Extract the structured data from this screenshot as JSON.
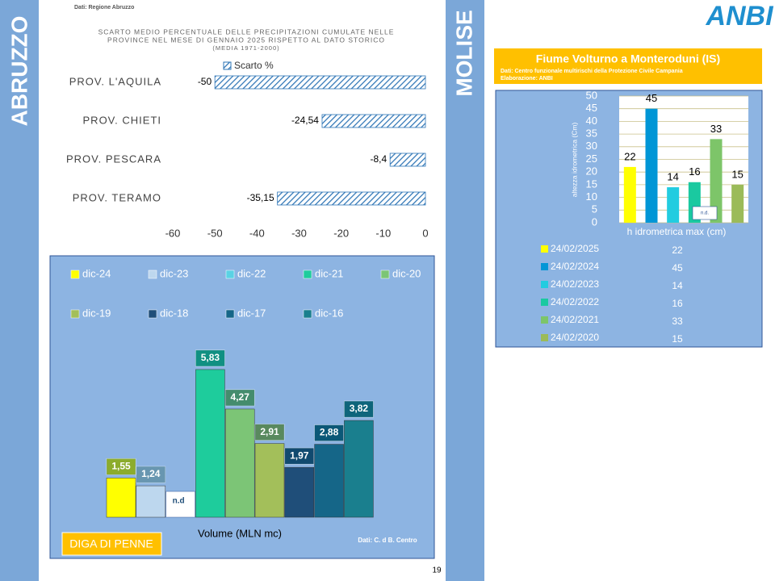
{
  "sidebar_left": "ABRUZZO",
  "sidebar_right": "MOLISE",
  "logo": "ANBI",
  "page_number": "19",
  "chart_data": [
    {
      "type": "hbar",
      "source": "Dati: Regione Abruzzo",
      "title": [
        "SCARTO MEDIO PERCENTUALE DELLE PRECIPITAZIONI CUMULATE NELLE",
        "PROVINCE NEL MESE DI GENNAIO 2025 RISPETTO AL DATO STORICO",
        "(MEDIA 1971-2000)"
      ],
      "categories": [
        "PROV. L'AQUILA",
        "PROV. CHIETI",
        "PROV. PESCARA",
        "PROV. TERAMO"
      ],
      "series": [
        {
          "name": "Scarto %",
          "color": "#2e75b6",
          "values": [
            -50,
            -24.54,
            -8.4,
            -35.15
          ],
          "value_labels": [
            "-50",
            "-24,54",
            "-8,4",
            "-35,15"
          ]
        }
      ],
      "xlim": [
        -60,
        0
      ],
      "xticks": [
        -60,
        -50,
        -40,
        -30,
        -20,
        -10,
        0
      ]
    },
    {
      "type": "bar",
      "title": "DIGA DI PENNE",
      "xlabel": "Volume (MLN mc)",
      "source": "Dati: C. d B. Centro",
      "series": [
        {
          "name": "dic-24",
          "color": "#ffff00",
          "values": [
            1.55
          ],
          "value_labels": [
            "1,55"
          ]
        },
        {
          "name": "dic-23",
          "color": "#bdd7ee",
          "values": [
            1.24
          ],
          "value_labels": [
            "1,24"
          ]
        },
        {
          "name": "dic-22",
          "color": "#5ad2e4",
          "values": [
            null
          ],
          "value_labels": [
            "n.d"
          ]
        },
        {
          "name": "dic-21",
          "color": "#1ecc9c",
          "values": [
            5.83
          ],
          "value_labels": [
            "5,83"
          ]
        },
        {
          "name": "dic-20",
          "color": "#7cc576",
          "values": [
            4.27
          ],
          "value_labels": [
            "4,27"
          ]
        },
        {
          "name": "dic-19",
          "color": "#a3bf5a",
          "values": [
            2.91
          ],
          "value_labels": [
            "2,91"
          ]
        },
        {
          "name": "dic-18",
          "color": "#1f4e79",
          "values": [
            1.97
          ],
          "value_labels": [
            "1,97"
          ]
        },
        {
          "name": "dic-17",
          "color": "#156688",
          "values": [
            2.88
          ],
          "value_labels": [
            "2,88"
          ]
        },
        {
          "name": "dic-16",
          "color": "#1a7f8e",
          "values": [
            3.82
          ],
          "value_labels": [
            "3,82"
          ]
        }
      ]
    },
    {
      "type": "bar",
      "title": "Fiume Volturno a Monteroduni (IS)",
      "subtitle": [
        "Dati: Centro funzionale multirischi della Protezione Civile Campania",
        "Elaborazione: ANBI"
      ],
      "ylabel": "altezza idrometrica (Cm)",
      "xlabel": "h idrometrica max (cm)",
      "annotations": [
        "n.d."
      ],
      "ylim": [
        0,
        50
      ],
      "yticks": [
        0,
        5,
        10,
        15,
        20,
        25,
        30,
        35,
        40,
        45,
        50
      ],
      "grid": true,
      "series": [
        {
          "name": "24/02/2025",
          "color": "#ffff00",
          "values": [
            22
          ]
        },
        {
          "name": "24/02/2024",
          "color": "#0096d6",
          "values": [
            45
          ]
        },
        {
          "name": "24/02/2023",
          "color": "#22cce0",
          "values": [
            14
          ]
        },
        {
          "name": "24/02/2022",
          "color": "#1ac9a0",
          "values": [
            16
          ]
        },
        {
          "name": "24/02/2021",
          "color": "#7dc569",
          "values": [
            33
          ]
        },
        {
          "name": "24/02/2020",
          "color": "#9bbb59",
          "values": [
            15
          ]
        }
      ]
    }
  ]
}
